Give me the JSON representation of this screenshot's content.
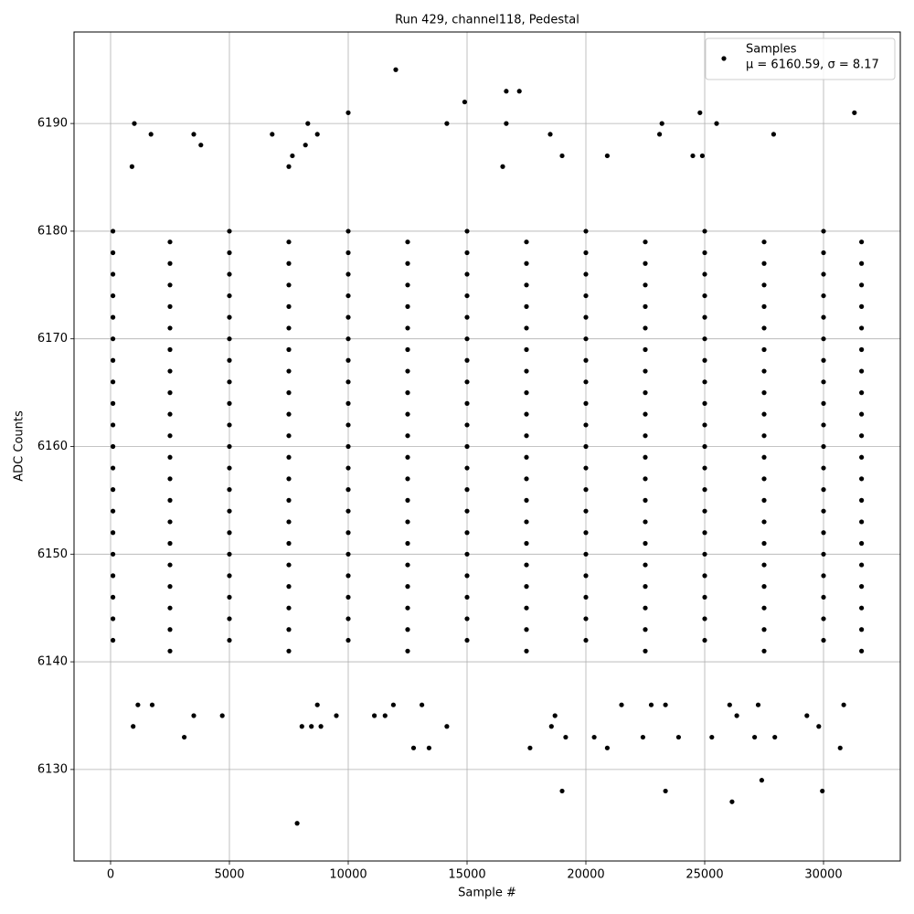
{
  "chart_data": {
    "type": "scatter",
    "title": "Run 429, channel118, Pedestal",
    "x_label": "Sample #",
    "y_label": "ADC Counts",
    "xlim": [
      -1538,
      33230
    ],
    "ylim": [
      6121.5,
      6198.5
    ],
    "xticks": [
      0,
      5000,
      10000,
      15000,
      20000,
      25000,
      30000
    ],
    "yticks": [
      6130,
      6140,
      6150,
      6160,
      6170,
      6180,
      6190
    ],
    "grid": true,
    "legend_position": "upper right",
    "annotation": "μ = 6160.59, σ = 8.17",
    "series": [
      {
        "name": "Samples",
        "color": "#000000",
        "x": [
          2500,
          7500,
          12500,
          17500,
          22500,
          27500,
          31600,
          100,
          5000,
          10000,
          15000,
          20000,
          25000,
          30000,
          2500,
          7500,
          12500,
          17500,
          22500,
          27500,
          31600,
          100,
          5000,
          10000,
          15000,
          20000,
          25000,
          30000,
          2500,
          7500,
          12500,
          17500,
          22500,
          27500,
          31600,
          100,
          5000,
          10000,
          15000,
          20000,
          25000,
          30000,
          2500,
          7500,
          12500,
          17500,
          22500,
          27500,
          31600,
          100,
          5000,
          10000,
          15000,
          20000,
          25000,
          30000,
          2500,
          7500,
          12500,
          17500,
          22500,
          27500,
          31600,
          100,
          5000,
          10000,
          15000,
          20000,
          25000,
          30000,
          2500,
          7500,
          12500,
          17500,
          22500,
          27500,
          31600,
          100,
          5000,
          10000,
          15000,
          20000,
          25000,
          30000,
          2500,
          7500,
          12500,
          17500,
          22500,
          27500,
          31600,
          100,
          5000,
          10000,
          15000,
          20000,
          25000,
          30000,
          2500,
          7500,
          12500,
          17500,
          22500,
          27500,
          31600,
          100,
          5000,
          10000,
          15000,
          20000,
          25000,
          30000,
          2500,
          7500,
          12500,
          17500,
          22500,
          27500,
          31600,
          100,
          5000,
          10000,
          15000,
          20000,
          25000,
          30000,
          2500,
          7500,
          12500,
          17500,
          22500,
          27500,
          31600,
          100,
          5000,
          10000,
          15000,
          20000,
          25000,
          30000,
          2500,
          7500,
          12500,
          17500,
          22500,
          27500,
          31600,
          100,
          5000,
          10000,
          15000,
          20000,
          25000,
          30000,
          2500,
          7500,
          12500,
          17500,
          22500,
          27500,
          31600,
          100,
          5000,
          10000,
          15000,
          20000,
          25000,
          30000,
          2500,
          7500,
          12500,
          17500,
          22500,
          27500,
          31600,
          100,
          5000,
          10000,
          15000,
          20000,
          25000,
          30000,
          2500,
          7500,
          12500,
          17500,
          22500,
          27500,
          31600,
          100,
          5000,
          10000,
          15000,
          20000,
          25000,
          30000,
          2500,
          7500,
          12500,
          17500,
          22500,
          27500,
          31600,
          100,
          5000,
          10000,
          15000,
          20000,
          25000,
          30000,
          2500,
          7500,
          12500,
          17500,
          22500,
          27500,
          31600,
          100,
          5000,
          10000,
          15000,
          20000,
          25000,
          30000,
          2500,
          7500,
          12500,
          17500,
          22500,
          27500,
          31600,
          100,
          5000,
          10000,
          15000,
          20000,
          25000,
          30000,
          2500,
          7500,
          12500,
          17500,
          22500,
          27500,
          31600,
          100,
          5000,
          10000,
          15000,
          20000,
          25000,
          30000,
          2500,
          7500,
          12500,
          17500,
          22500,
          27500,
          31600,
          100,
          5000,
          10000,
          15000,
          20000,
          25000,
          30000,
          2500,
          7500,
          12500,
          17500,
          22500,
          27500,
          31600,
          100,
          5000,
          10000,
          15000,
          20000,
          25000,
          30000,
          12000,
          14900,
          16650,
          17200,
          10000,
          24800,
          31300,
          1000,
          8300,
          14150,
          16650,
          23200,
          25500,
          1700,
          3500,
          6800,
          8700,
          18500,
          23100,
          27900,
          3800,
          8200,
          19000,
          20900,
          7650,
          24500,
          24900,
          900,
          7500,
          16500,
          7850,
          26150,
          19000,
          23350,
          29950,
          27400,
          3100,
          950,
          8050,
          8450,
          8850,
          14150,
          18550,
          29800,
          3500,
          4700,
          9500,
          11100,
          11550,
          18700,
          26350,
          29300,
          12750,
          13400,
          17650,
          20900,
          30700,
          19150,
          20350,
          22400,
          23900,
          25300,
          27100,
          27950,
          1150,
          1750,
          8700,
          11900,
          13100,
          21500,
          22750,
          23350,
          26050,
          27250,
          30850
        ],
        "values": [
          6141,
          6141,
          6141,
          6141,
          6141,
          6141,
          6141,
          6142,
          6142,
          6142,
          6142,
          6142,
          6142,
          6142,
          6143,
          6143,
          6143,
          6143,
          6143,
          6143,
          6143,
          6144,
          6144,
          6144,
          6144,
          6144,
          6144,
          6144,
          6145,
          6145,
          6145,
          6145,
          6145,
          6145,
          6145,
          6146,
          6146,
          6146,
          6146,
          6146,
          6146,
          6146,
          6147,
          6147,
          6147,
          6147,
          6147,
          6147,
          6147,
          6148,
          6148,
          6148,
          6148,
          6148,
          6148,
          6148,
          6149,
          6149,
          6149,
          6149,
          6149,
          6149,
          6149,
          6150,
          6150,
          6150,
          6150,
          6150,
          6150,
          6150,
          6151,
          6151,
          6151,
          6151,
          6151,
          6151,
          6151,
          6152,
          6152,
          6152,
          6152,
          6152,
          6152,
          6152,
          6153,
          6153,
          6153,
          6153,
          6153,
          6153,
          6153,
          6154,
          6154,
          6154,
          6154,
          6154,
          6154,
          6154,
          6155,
          6155,
          6155,
          6155,
          6155,
          6155,
          6155,
          6156,
          6156,
          6156,
          6156,
          6156,
          6156,
          6156,
          6157,
          6157,
          6157,
          6157,
          6157,
          6157,
          6157,
          6158,
          6158,
          6158,
          6158,
          6158,
          6158,
          6158,
          6159,
          6159,
          6159,
          6159,
          6159,
          6159,
          6159,
          6160,
          6160,
          6160,
          6160,
          6160,
          6160,
          6160,
          6161,
          6161,
          6161,
          6161,
          6161,
          6161,
          6161,
          6162,
          6162,
          6162,
          6162,
          6162,
          6162,
          6162,
          6163,
          6163,
          6163,
          6163,
          6163,
          6163,
          6163,
          6164,
          6164,
          6164,
          6164,
          6164,
          6164,
          6164,
          6165,
          6165,
          6165,
          6165,
          6165,
          6165,
          6165,
          6166,
          6166,
          6166,
          6166,
          6166,
          6166,
          6166,
          6167,
          6167,
          6167,
          6167,
          6167,
          6167,
          6167,
          6168,
          6168,
          6168,
          6168,
          6168,
          6168,
          6168,
          6169,
          6169,
          6169,
          6169,
          6169,
          6169,
          6169,
          6170,
          6170,
          6170,
          6170,
          6170,
          6170,
          6170,
          6171,
          6171,
          6171,
          6171,
          6171,
          6171,
          6171,
          6172,
          6172,
          6172,
          6172,
          6172,
          6172,
          6172,
          6173,
          6173,
          6173,
          6173,
          6173,
          6173,
          6173,
          6174,
          6174,
          6174,
          6174,
          6174,
          6174,
          6174,
          6175,
          6175,
          6175,
          6175,
          6175,
          6175,
          6175,
          6176,
          6176,
          6176,
          6176,
          6176,
          6176,
          6176,
          6177,
          6177,
          6177,
          6177,
          6177,
          6177,
          6177,
          6178,
          6178,
          6178,
          6178,
          6178,
          6178,
          6178,
          6179,
          6179,
          6179,
          6179,
          6179,
          6179,
          6179,
          6180,
          6180,
          6180,
          6180,
          6180,
          6180,
          6180,
          6195,
          6192,
          6193,
          6193,
          6191,
          6191,
          6191,
          6190,
          6190,
          6190,
          6190,
          6190,
          6190,
          6189,
          6189,
          6189,
          6189,
          6189,
          6189,
          6189,
          6188,
          6188,
          6187,
          6187,
          6187,
          6187,
          6187,
          6186,
          6186,
          6186,
          6125,
          6127,
          6128,
          6128,
          6128,
          6129,
          6133,
          6134,
          6134,
          6134,
          6134,
          6134,
          6134,
          6134,
          6135,
          6135,
          6135,
          6135,
          6135,
          6135,
          6135,
          6135,
          6132,
          6132,
          6132,
          6132,
          6132,
          6133,
          6133,
          6133,
          6133,
          6133,
          6133,
          6133,
          6136,
          6136,
          6136,
          6136,
          6136,
          6136,
          6136,
          6136,
          6136,
          6136,
          6136
        ]
      }
    ]
  }
}
